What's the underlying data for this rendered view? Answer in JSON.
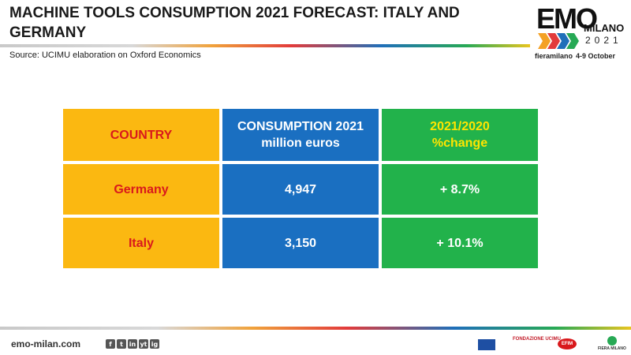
{
  "header": {
    "title": "MACHINE TOOLS CONSUMPTION 2021 FORECAST: ITALY AND GERMANY",
    "source": "Source: UCIMU elaboration on Oxford Economics"
  },
  "logo": {
    "emo": "EMO",
    "milano": "MILANO",
    "year": "2021",
    "fiera": "fieramilano",
    "dates": "4-9 October"
  },
  "table": {
    "headers": [
      {
        "line1": "COUNTRY",
        "line2": ""
      },
      {
        "line1": "CONSUMPTION 2021",
        "line2": "million euros"
      },
      {
        "line1": "2021/2020",
        "line2": "%change"
      }
    ],
    "rows": [
      {
        "country": "Germany",
        "consumption": "4,947",
        "change": "+ 8.7%"
      },
      {
        "country": "Italy",
        "consumption": "3,150",
        "change": "+ 10.1%"
      }
    ]
  },
  "footer": {
    "url": "emo-milan.com",
    "social": [
      "f",
      "t",
      "in",
      "yt",
      "ig"
    ],
    "partners": {
      "fondazione": "FONDAZIONE UCIMU",
      "efim": "EFIM",
      "fiera": "FIERA MILANO"
    }
  },
  "colors": {
    "yellow": "#fbb811",
    "blue": "#1a6fc1",
    "green": "#22b24b",
    "red_text": "#d9191c",
    "yellow_text": "#ffe500"
  }
}
